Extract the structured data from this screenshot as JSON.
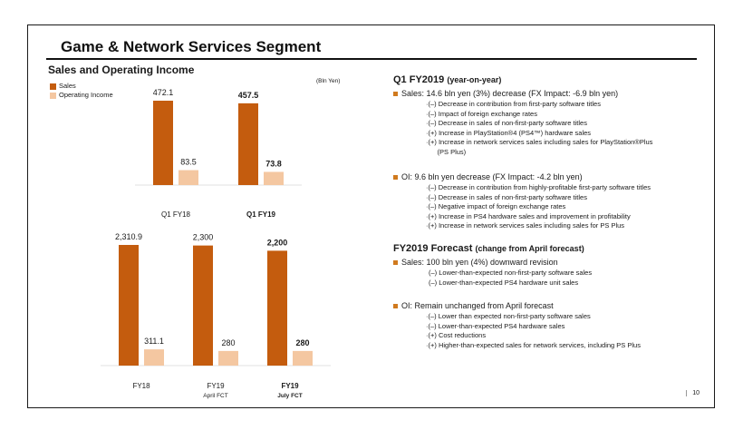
{
  "title": "Game & Network Services Segment",
  "chart_heading": "Sales and Operating Income",
  "unit_label": "(Bln Yen)",
  "colors": {
    "sales": "#c45c0e",
    "operating_income": "#f4c7a1",
    "bullet": "#d07a1e"
  },
  "chart_data": [
    {
      "type": "bar",
      "categories": [
        "Q1 FY18",
        "Q1 FY19"
      ],
      "series": [
        {
          "name": "Sales",
          "values": [
            472.1,
            457.5
          ],
          "labels": [
            "472.1",
            "457.5"
          ]
        },
        {
          "name": "Operating Income",
          "values": [
            83.5,
            73.8
          ],
          "labels": [
            "83.5",
            "73.8"
          ]
        }
      ]
    },
    {
      "type": "bar",
      "categories": [
        "FY18",
        "FY19",
        "FY19"
      ],
      "category_sublabels": [
        "",
        "April FCT",
        "July FCT"
      ],
      "series": [
        {
          "name": "Sales",
          "values": [
            2310.9,
            2300,
            2200
          ],
          "labels": [
            "2,310.9",
            "2,300",
            "2,200"
          ]
        },
        {
          "name": "Operating Income",
          "values": [
            311.1,
            280,
            280
          ],
          "labels": [
            "311.1",
            "280",
            "280"
          ]
        }
      ]
    }
  ],
  "q1": {
    "title": "Q1 FY2019",
    "title_sub": "(year-on-year)",
    "sales_bullet": "Sales: 14.6 bln yen (3%) decrease (FX Impact:  -6.9 bln yen)",
    "sales_items": [
      "·(–) Decrease in contribution from first-party software titles",
      "·(–) Impact of foreign exchange rates",
      "·(–) Decrease in sales of non-first-party software titles",
      "·(+) Increase in PlayStation®4 (PS4™) hardware sales",
      "·(+) Increase in network services sales including sales for PlayStation®Plus",
      "      (PS Plus)"
    ],
    "oi_bullet": "OI: 9.6 bln yen decrease (FX Impact:  -4.2 bln yen)",
    "oi_items": [
      "·(–) Decrease in contribution from highly-profitable first-party software titles",
      "·(–) Decrease in sales of non-first-party software titles",
      "·(–) Negative impact of foreign exchange rates",
      "·(+) Increase in PS4 hardware sales and improvement in profitability",
      "·(+) Increase in network services sales including sales for PS Plus"
    ]
  },
  "forecast": {
    "title": "FY2019 Forecast",
    "title_sub": "(change from April forecast)",
    "sales_bullet": "Sales: 100 bln yen (4%) downward revision",
    "sales_items": [
      "(–) Lower-than-expected non-first-party software sales",
      "(–) Lower-than-expected PS4 hardware unit sales"
    ],
    "oi_bullet": "OI: Remain unchanged from April forecast",
    "oi_items": [
      "·(–) Lower than expected non-first-party software sales",
      "·(–) Lower-than-expected PS4 hardware sales",
      "·(+) Cost reductions",
      "·(+) Higher-than-expected sales for network services, including PS Plus"
    ]
  },
  "page_number": "10"
}
